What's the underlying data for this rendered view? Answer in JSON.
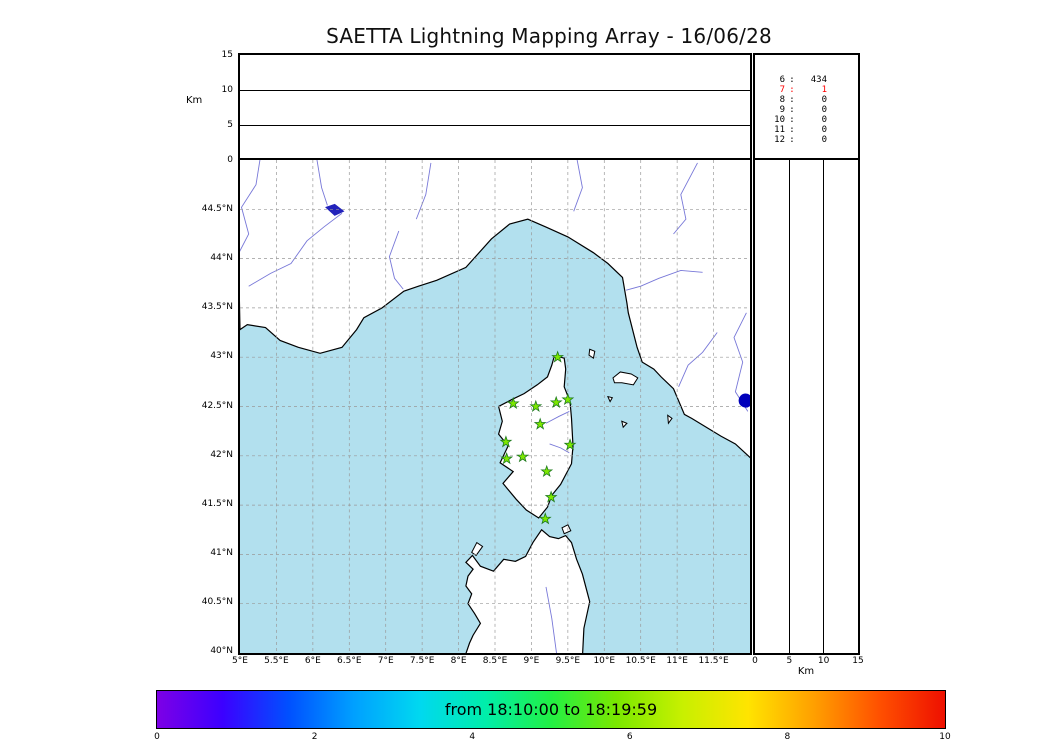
{
  "title": "SAETTA Lightning Mapping Array - 16/06/28",
  "colors": {
    "sea": "#b2e0ee",
    "land": "#ffffff",
    "coast": "#000000",
    "river": "#7878d8",
    "lake": "#2222bb",
    "grid": "#999999",
    "station_fill": "#7de800",
    "station_edge": "#1e7a1e",
    "source": "#0000bb",
    "highlight": "#ff0000"
  },
  "top_panel": {
    "ylabel": "Km",
    "ylim": [
      0,
      15
    ],
    "yticks": [
      {
        "v": 0,
        "label": "0"
      },
      {
        "v": 5,
        "label": "5"
      },
      {
        "v": 10,
        "label": "10"
      },
      {
        "v": 15,
        "label": "15"
      }
    ],
    "grid_km": [
      5,
      10
    ]
  },
  "stats_panel": {
    "rows": [
      {
        "label": "6",
        "value": "434",
        "red": false
      },
      {
        "label": "7",
        "value": "1",
        "red": true
      },
      {
        "label": "8",
        "value": "0",
        "red": false
      },
      {
        "label": "9",
        "value": "0",
        "red": false
      },
      {
        "label": "10",
        "value": "0",
        "red": false
      },
      {
        "label": "11",
        "value": "0",
        "red": false
      },
      {
        "label": "12",
        "value": "0",
        "red": false
      }
    ]
  },
  "map_panel": {
    "lon_range": [
      5,
      12
    ],
    "lat_range": [
      40,
      45
    ],
    "grid_step_deg": 0.5,
    "lat_ticks": [
      {
        "v": 40,
        "label": "40°N"
      },
      {
        "v": 40.5,
        "label": "40.5°N"
      },
      {
        "v": 41,
        "label": "41°N"
      },
      {
        "v": 41.5,
        "label": "41.5°N"
      },
      {
        "v": 42,
        "label": "42°N"
      },
      {
        "v": 42.5,
        "label": "42.5°N"
      },
      {
        "v": 43,
        "label": "43°N"
      },
      {
        "v": 43.5,
        "label": "43.5°N"
      },
      {
        "v": 44,
        "label": "44°N"
      },
      {
        "v": 44.5,
        "label": "44.5°N"
      }
    ],
    "lon_ticks": [
      {
        "v": 5,
        "label": "5°E"
      },
      {
        "v": 5.5,
        "label": "5.5°E"
      },
      {
        "v": 6,
        "label": "6°E"
      },
      {
        "v": 6.5,
        "label": "6.5°E"
      },
      {
        "v": 7,
        "label": "7°E"
      },
      {
        "v": 7.5,
        "label": "7.5°E"
      },
      {
        "v": 8,
        "label": "8°E"
      },
      {
        "v": 8.5,
        "label": "8.5°E"
      },
      {
        "v": 9,
        "label": "9°E"
      },
      {
        "v": 9.5,
        "label": "9.5°E"
      },
      {
        "v": 10,
        "label": "10°E"
      },
      {
        "v": 10.5,
        "label": "10.5°E"
      },
      {
        "v": 11,
        "label": "11°E"
      },
      {
        "v": 11.5,
        "label": "11.5°E"
      }
    ]
  },
  "right_panel": {
    "xlabel": "Km",
    "xlim": [
      0,
      15
    ],
    "xticks": [
      {
        "v": 0,
        "label": "0"
      },
      {
        "v": 5,
        "label": "5"
      },
      {
        "v": 10,
        "label": "10"
      },
      {
        "v": 15,
        "label": "15"
      }
    ],
    "grid_km": [
      5,
      10
    ]
  },
  "colorbar": {
    "label": "from 18:10:00 to 18:19:59",
    "ticks": [
      {
        "v": 0,
        "label": "0"
      },
      {
        "v": 2,
        "label": "2"
      },
      {
        "v": 4,
        "label": "4"
      },
      {
        "v": 6,
        "label": "6"
      },
      {
        "v": 8,
        "label": "8"
      },
      {
        "v": 10,
        "label": "10"
      }
    ],
    "gradient_stops": [
      "#7d00e6",
      "#3c00ff",
      "#0050ff",
      "#00a0ff",
      "#00d8f0",
      "#00eeaa",
      "#22f044",
      "#7ae800",
      "#c8f000",
      "#ffe400",
      "#ffa000",
      "#ff5000",
      "#ee1000"
    ]
  },
  "geo": {
    "mainland": [
      [
        5.0,
        43.28
      ],
      [
        5.1,
        43.33
      ],
      [
        5.35,
        43.3
      ],
      [
        5.55,
        43.17
      ],
      [
        5.8,
        43.1
      ],
      [
        6.1,
        43.04
      ],
      [
        6.4,
        43.1
      ],
      [
        6.6,
        43.28
      ],
      [
        6.7,
        43.4
      ],
      [
        6.95,
        43.5
      ],
      [
        7.25,
        43.67
      ],
      [
        7.45,
        43.72
      ],
      [
        7.7,
        43.78
      ],
      [
        8.1,
        43.91
      ],
      [
        8.45,
        44.2
      ],
      [
        8.7,
        44.35
      ],
      [
        8.95,
        44.4
      ],
      [
        9.2,
        44.32
      ],
      [
        9.5,
        44.22
      ],
      [
        9.85,
        44.06
      ],
      [
        10.05,
        43.95
      ],
      [
        10.25,
        43.81
      ],
      [
        10.31,
        43.55
      ],
      [
        10.33,
        43.45
      ],
      [
        10.45,
        43.1
      ],
      [
        10.52,
        42.95
      ],
      [
        10.68,
        42.88
      ],
      [
        10.78,
        42.8
      ],
      [
        10.95,
        42.68
      ],
      [
        11.1,
        42.42
      ],
      [
        11.2,
        42.38
      ],
      [
        11.6,
        42.2
      ],
      [
        11.8,
        42.12
      ],
      [
        12.05,
        41.95
      ],
      [
        12.05,
        45.05
      ],
      [
        4.95,
        45.05
      ]
    ],
    "corsica": [
      [
        9.35,
        43.01
      ],
      [
        9.45,
        42.99
      ],
      [
        9.47,
        42.88
      ],
      [
        9.45,
        42.7
      ],
      [
        9.53,
        42.55
      ],
      [
        9.55,
        42.38
      ],
      [
        9.57,
        42.1
      ],
      [
        9.55,
        41.92
      ],
      [
        9.4,
        41.71
      ],
      [
        9.28,
        41.6
      ],
      [
        9.22,
        41.48
      ],
      [
        9.1,
        41.37
      ],
      [
        8.93,
        41.45
      ],
      [
        8.79,
        41.56
      ],
      [
        8.61,
        41.72
      ],
      [
        8.75,
        41.84
      ],
      [
        8.57,
        41.93
      ],
      [
        8.68,
        42.1
      ],
      [
        8.55,
        42.22
      ],
      [
        8.6,
        42.35
      ],
      [
        8.55,
        42.5
      ],
      [
        8.73,
        42.57
      ],
      [
        8.9,
        42.63
      ],
      [
        9.08,
        42.72
      ],
      [
        9.22,
        42.8
      ],
      [
        9.28,
        42.92
      ],
      [
        9.31,
        43.0
      ]
    ],
    "sardinia": [
      [
        8.08,
        39.95
      ],
      [
        8.15,
        40.1
      ],
      [
        8.2,
        40.18
      ],
      [
        8.3,
        40.3
      ],
      [
        8.22,
        40.4
      ],
      [
        8.13,
        40.5
      ],
      [
        8.18,
        40.6
      ],
      [
        8.1,
        40.68
      ],
      [
        8.13,
        40.78
      ],
      [
        8.2,
        40.85
      ],
      [
        8.1,
        40.92
      ],
      [
        8.19,
        40.99
      ],
      [
        8.3,
        40.88
      ],
      [
        8.48,
        40.83
      ],
      [
        8.62,
        40.95
      ],
      [
        8.78,
        40.93
      ],
      [
        8.92,
        40.98
      ],
      [
        9.02,
        41.12
      ],
      [
        9.14,
        41.25
      ],
      [
        9.25,
        41.18
      ],
      [
        9.37,
        41.16
      ],
      [
        9.47,
        41.19
      ],
      [
        9.55,
        41.12
      ],
      [
        9.62,
        40.95
      ],
      [
        9.7,
        40.8
      ],
      [
        9.8,
        40.52
      ],
      [
        9.72,
        40.25
      ],
      [
        9.7,
        39.95
      ]
    ],
    "islands": [
      [
        [
          10.12,
          42.79
        ],
        [
          10.22,
          42.85
        ],
        [
          10.37,
          42.83
        ],
        [
          10.46,
          42.79
        ],
        [
          10.4,
          42.72
        ],
        [
          10.24,
          42.74
        ],
        [
          10.14,
          42.74
        ]
      ],
      [
        [
          9.8,
          43.08
        ],
        [
          9.87,
          43.06
        ],
        [
          9.85,
          42.99
        ],
        [
          9.79,
          43.02
        ]
      ],
      [
        [
          10.05,
          42.6
        ],
        [
          10.11,
          42.59
        ],
        [
          10.08,
          42.55
        ]
      ],
      [
        [
          10.24,
          42.35
        ],
        [
          10.31,
          42.33
        ],
        [
          10.26,
          42.29
        ]
      ],
      [
        [
          10.87,
          42.41
        ],
        [
          10.93,
          42.38
        ],
        [
          10.88,
          42.33
        ]
      ],
      [
        [
          8.18,
          41.02
        ],
        [
          8.25,
          41.12
        ],
        [
          8.33,
          41.08
        ],
        [
          8.24,
          40.99
        ]
      ],
      [
        [
          9.42,
          41.27
        ],
        [
          9.5,
          41.3
        ],
        [
          9.54,
          41.24
        ],
        [
          9.45,
          41.21
        ]
      ]
    ],
    "rivers": [
      [
        [
          5.28,
          45.03
        ],
        [
          5.22,
          44.75
        ],
        [
          5.02,
          44.52
        ],
        [
          5.12,
          44.25
        ],
        [
          4.98,
          44.05
        ]
      ],
      [
        [
          6.05,
          45.03
        ],
        [
          6.12,
          44.72
        ],
        [
          6.2,
          44.54
        ]
      ],
      [
        [
          6.4,
          44.46
        ],
        [
          6.15,
          44.32
        ],
        [
          5.92,
          44.18
        ],
        [
          5.7,
          43.95
        ],
        [
          5.42,
          43.85
        ],
        [
          5.12,
          43.72
        ]
      ],
      [
        [
          7.18,
          44.28
        ],
        [
          7.05,
          44.02
        ],
        [
          7.12,
          43.8
        ],
        [
          7.24,
          43.69
        ]
      ],
      [
        [
          7.62,
          44.97
        ],
        [
          7.55,
          44.65
        ],
        [
          7.42,
          44.4
        ]
      ],
      [
        [
          9.62,
          45.03
        ],
        [
          9.7,
          44.72
        ],
        [
          9.58,
          44.48
        ]
      ],
      [
        [
          11.28,
          44.97
        ],
        [
          11.05,
          44.65
        ],
        [
          11.12,
          44.4
        ],
        [
          10.95,
          44.25
        ]
      ],
      [
        [
          11.35,
          43.86
        ],
        [
          11.05,
          43.88
        ],
        [
          10.75,
          43.8
        ],
        [
          10.5,
          43.72
        ],
        [
          10.3,
          43.68
        ]
      ],
      [
        [
          11.95,
          43.45
        ],
        [
          11.78,
          43.2
        ],
        [
          11.9,
          42.95
        ],
        [
          11.8,
          42.65
        ],
        [
          11.97,
          42.45
        ]
      ],
      [
        [
          11.55,
          43.25
        ],
        [
          11.35,
          43.05
        ],
        [
          11.15,
          42.92
        ],
        [
          11.02,
          42.7
        ]
      ],
      [
        [
          9.2,
          42.33
        ],
        [
          9.38,
          42.4
        ],
        [
          9.52,
          42.45
        ]
      ],
      [
        [
          9.25,
          42.12
        ],
        [
          9.4,
          42.08
        ],
        [
          9.52,
          42.03
        ]
      ],
      [
        [
          9.35,
          39.97
        ],
        [
          9.28,
          40.35
        ],
        [
          9.2,
          40.67
        ]
      ]
    ],
    "lakes": [
      [
        [
          6.18,
          44.52
        ],
        [
          6.3,
          44.55
        ],
        [
          6.42,
          44.48
        ],
        [
          6.3,
          44.44
        ]
      ]
    ]
  },
  "chart_data": [
    {
      "type": "scatter",
      "panel": "plan-view-map",
      "title": "SAETTA Lightning Mapping Array - 16/06/28",
      "x": {
        "units": "degrees E",
        "range": [
          5,
          12
        ],
        "ticks": [
          5,
          5.5,
          6,
          6.5,
          7,
          7.5,
          8,
          8.5,
          9,
          9.5,
          10,
          10.5,
          11,
          11.5
        ]
      },
      "y": {
        "units": "degrees N",
        "range": [
          40,
          45
        ],
        "ticks": [
          40,
          40.5,
          41,
          41.5,
          42,
          42.5,
          43,
          43.5,
          44,
          44.5
        ]
      },
      "grid": "dashed, 0.5 degree spacing",
      "series": [
        {
          "name": "lma-stations",
          "marker": "star",
          "color": "#7de800",
          "points_lon_lat": [
            [
              9.36,
              43.0
            ],
            [
              8.75,
              42.53
            ],
            [
              9.06,
              42.5
            ],
            [
              9.34,
              42.54
            ],
            [
              9.5,
              42.57
            ],
            [
              9.12,
              42.32
            ],
            [
              8.65,
              42.14
            ],
            [
              9.53,
              42.11
            ],
            [
              8.66,
              41.97
            ],
            [
              8.88,
              41.99
            ],
            [
              9.21,
              41.84
            ],
            [
              9.27,
              41.58
            ],
            [
              9.19,
              41.36
            ]
          ]
        },
        {
          "name": "lightning-sources",
          "marker": "circle",
          "color": "#0000bb",
          "points_lon_lat": [
            [
              11.94,
              42.56
            ]
          ]
        }
      ]
    },
    {
      "type": "scatter",
      "panel": "altitude-vs-longitude",
      "ylabel": "Km",
      "ylim": [
        0,
        15
      ],
      "yticks": [
        0,
        5,
        10,
        15
      ],
      "grid_km": [
        5,
        10
      ],
      "points": []
    },
    {
      "type": "scatter",
      "panel": "altitude-vs-latitude",
      "xlabel": "Km",
      "xlim": [
        0,
        15
      ],
      "xticks": [
        0,
        5,
        10,
        15
      ],
      "grid_km": [
        5,
        10
      ],
      "points": []
    },
    {
      "type": "table",
      "panel": "stations-contributing-counts",
      "rows": [
        [
          6,
          434
        ],
        [
          7,
          1
        ],
        [
          8,
          0
        ],
        [
          9,
          0
        ],
        [
          10,
          0
        ],
        [
          11,
          0
        ],
        [
          12,
          0
        ]
      ],
      "highlighted_row": 7
    },
    {
      "type": "colorbar",
      "panel": "time-colorbar",
      "label": "from 18:10:00 to 18:19:59",
      "time_start": "18:10:00",
      "time_end": "18:19:59",
      "ticks": [
        0,
        2,
        4,
        6,
        8,
        10
      ]
    }
  ]
}
